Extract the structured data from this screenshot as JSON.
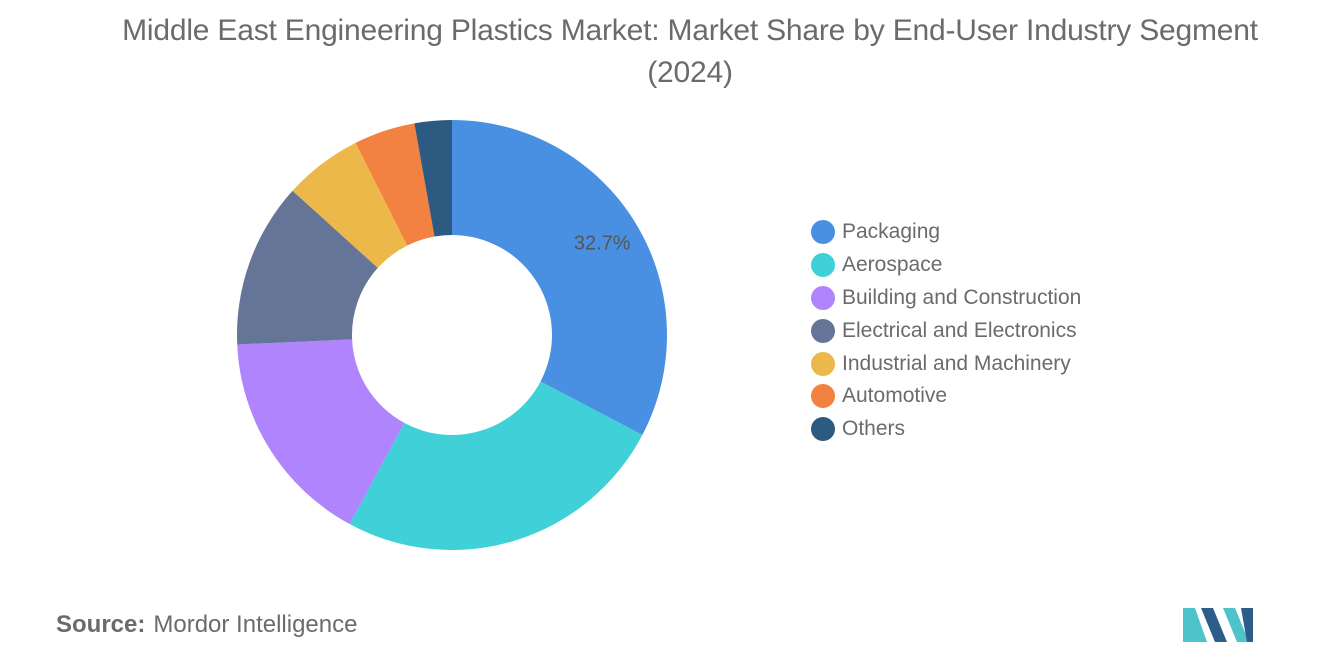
{
  "title": "Middle East Engineering Plastics Market: Market Share by End-User Industry Segment (2024)",
  "source": {
    "prefix": "Source:",
    "name": "Mordor Intelligence"
  },
  "colors": {
    "packaging": "#4a90e2",
    "aerospace": "#40d0d8",
    "building": "#b084fc",
    "electrical": "#647597",
    "industrial": "#ecb84a",
    "automotive": "#f28142",
    "others": "#2d5a80",
    "logo_teal": "#4ec3c9",
    "logo_navy": "#2b5f8a"
  },
  "logo": {
    "icon": "mordor-intelligence-logo"
  },
  "chart_data": {
    "type": "pie",
    "variant": "donut",
    "title": "Middle East Engineering Plastics Market: Market Share by End-User Industry Segment (2024)",
    "unit": "%",
    "legend_position": "right",
    "categories": [
      "Packaging",
      "Aerospace",
      "Building and Construction",
      "Electrical and Electronics",
      "Industrial and Machinery",
      "Automotive",
      "Others"
    ],
    "values": [
      32.7,
      25.2,
      16.4,
      12.4,
      5.9,
      4.6,
      2.8
    ],
    "data_labels": [
      "32.7%",
      "",
      "",
      "",
      "",
      "",
      ""
    ],
    "slice_colors": [
      "#4a90e2",
      "#40d0d8",
      "#b084fc",
      "#647597",
      "#ecb84a",
      "#f28142",
      "#2d5a80"
    ]
  }
}
